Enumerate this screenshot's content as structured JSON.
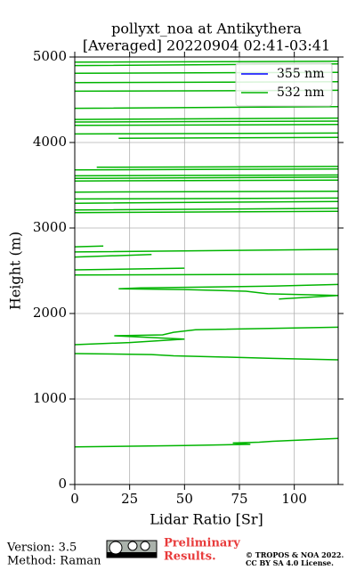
{
  "chart_data": {
    "type": "line",
    "title": [
      "pollyxt_noa at Antikythera",
      "[Averaged] 20220904 02:41-03:41"
    ],
    "xlabel": "Lidar Ratio [Sr]",
    "ylabel": "Height (m)",
    "xlim": [
      0,
      120
    ],
    "xticks": [
      0,
      25,
      50,
      75,
      100
    ],
    "ylim": [
      0,
      5000
    ],
    "yticks": [
      0,
      1000,
      2000,
      3000,
      4000,
      5000
    ],
    "grid": true,
    "legend": "upper right",
    "heights": [
      440,
      455,
      470,
      485,
      495,
      505,
      540,
      null,
      1531,
      1520,
      1505,
      1490,
      1475,
      1458,
      null,
      1635,
      1660,
      1700,
      1740,
      1750,
      1780,
      1810,
      1840,
      null,
      2170,
      2210,
      2230,
      2260,
      2280,
      2290,
      2300,
      2320,
      2340,
      null,
      2450,
      2460,
      null,
      2510,
      2530,
      null,
      2660,
      2690,
      null,
      2720,
      2750,
      null,
      2780,
      2790,
      null,
      3180,
      3195,
      null,
      3210,
      3230,
      null,
      3290,
      3310,
      null,
      3340,
      3350,
      null,
      3420,
      3430,
      null,
      3550,
      3560,
      null,
      3580,
      3595,
      null,
      3610,
      3620,
      null,
      3680,
      3690,
      null,
      3710,
      3720,
      null,
      4050,
      4060,
      null,
      4100,
      4110,
      null,
      4200,
      4210,
      null,
      4240,
      4250,
      null,
      4270,
      4285,
      null,
      4400,
      4420,
      null,
      4600,
      4610,
      null,
      4700,
      4710,
      null,
      4810,
      4820,
      null,
      4900,
      4920,
      null,
      4940,
      4950
    ],
    "series": [
      {
        "name": "355 nm",
        "color": "#0000ff",
        "values": []
      },
      {
        "name": "532 nm",
        "color": "#00b400",
        "values": [
          0,
          50,
          80,
          72,
          84,
          90,
          120,
          null,
          0,
          35,
          45,
          70,
          90,
          120,
          null,
          0,
          25,
          50,
          18,
          40,
          45,
          55,
          120,
          null,
          93,
          120,
          88,
          78,
          50,
          20,
          30,
          90,
          120,
          null,
          0,
          120,
          null,
          0,
          50,
          null,
          0,
          35,
          null,
          0,
          120,
          null,
          0,
          13,
          null,
          0,
          120,
          null,
          0,
          120,
          null,
          0,
          120,
          null,
          0,
          120,
          null,
          0,
          120,
          null,
          0,
          120,
          null,
          0,
          120,
          null,
          0,
          120,
          null,
          0,
          120,
          null,
          10,
          120,
          null,
          20,
          120,
          null,
          0,
          120,
          null,
          0,
          120,
          null,
          0,
          120,
          null,
          0,
          120,
          null,
          0,
          120,
          null,
          0,
          120,
          null,
          0,
          120,
          null,
          0,
          120,
          null,
          0,
          120,
          null,
          0,
          120
        ]
      }
    ]
  },
  "footer": {
    "version": "Version: 3.5",
    "method": "Method: Raman",
    "status": [
      "Preliminary",
      "Results."
    ],
    "copyright": "© TROPOS & NOA 2022.",
    "license": "CC BY SA 4.0 License."
  }
}
